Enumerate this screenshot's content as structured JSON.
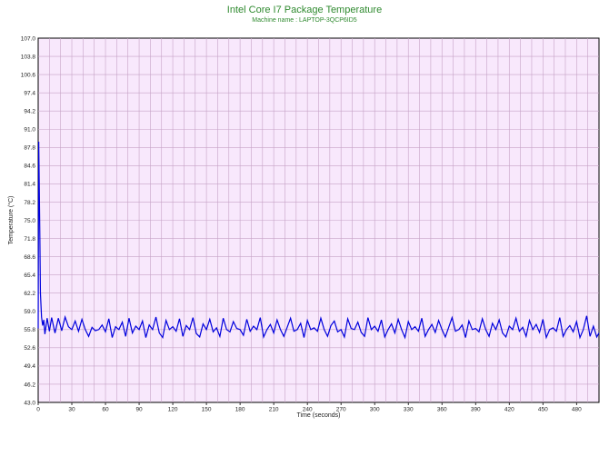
{
  "chart_data": {
    "type": "line",
    "title": "Intel Core I7 Package Temperature",
    "subtitle": "Machine name : LAPTOP-3QCP6ID5",
    "xlabel": "Time (seconds)",
    "ylabel": "Temperature (°C)",
    "xlim": [
      0,
      500
    ],
    "ylim": [
      43.0,
      107.0
    ],
    "x_ticks": [
      "0",
      "30",
      "60",
      "90",
      "120",
      "150",
      "180",
      "210",
      "240",
      "270",
      "300",
      "330",
      "360",
      "390",
      "420",
      "450",
      "480"
    ],
    "y_ticks": [
      "107.0",
      "103.8",
      "100.6",
      "97.4",
      "94.2",
      "91.0",
      "87.8",
      "84.6",
      "81.4",
      "78.2",
      "75.0",
      "71.8",
      "68.6",
      "65.4",
      "62.2",
      "59.0",
      "55.8",
      "52.6",
      "49.4",
      "46.2",
      "43.0"
    ],
    "grid": true,
    "colors": {
      "background": "#f8e8fc",
      "grid": "#c6a2c6",
      "line": "#0000dd",
      "title": "#2f8a2f"
    },
    "series": [
      {
        "x": [
          0,
          0.5,
          1,
          1.5,
          2,
          3,
          4,
          5,
          6,
          8,
          10,
          12,
          15,
          18,
          21,
          24,
          27,
          30,
          33,
          36,
          39,
          42,
          45,
          48,
          51,
          54,
          57,
          60,
          63,
          66,
          69,
          72,
          75,
          78,
          81,
          84,
          87,
          90,
          93,
          96,
          99,
          102,
          105,
          108,
          111,
          114,
          117,
          120,
          123,
          126,
          129,
          132,
          135,
          138,
          141,
          144,
          147,
          150,
          153,
          156,
          159,
          162,
          165,
          168,
          171,
          174,
          177,
          180,
          183,
          186,
          189,
          192,
          195,
          198,
          201,
          204,
          207,
          210,
          213,
          216,
          219,
          222,
          225,
          228,
          231,
          234,
          237,
          240,
          243,
          246,
          249,
          252,
          255,
          258,
          261,
          264,
          267,
          270,
          273,
          276,
          279,
          282,
          285,
          288,
          291,
          294,
          297,
          300,
          303,
          306,
          309,
          312,
          315,
          318,
          321,
          324,
          327,
          330,
          333,
          336,
          339,
          342,
          345,
          348,
          351,
          354,
          357,
          360,
          363,
          366,
          369,
          372,
          375,
          378,
          381,
          384,
          387,
          390,
          393,
          396,
          399,
          402,
          405,
          408,
          411,
          414,
          417,
          420,
          423,
          426,
          429,
          432,
          435,
          438,
          441,
          444,
          447,
          450,
          453,
          456,
          459,
          462,
          465,
          468,
          471,
          474,
          477,
          480,
          483,
          486,
          489,
          492,
          495,
          498,
          500
        ],
        "y": [
          56.0,
          88.8,
          80.5,
          72.0,
          62.2,
          58.0,
          56.5,
          57.5,
          55.0,
          57.8,
          55.5,
          57.9,
          55.2,
          57.8,
          55.6,
          58.0,
          56.3,
          55.8,
          57.3,
          55.5,
          57.6,
          55.8,
          54.6,
          56.2,
          55.6,
          55.8,
          56.6,
          55.4,
          57.7,
          54.4,
          56.3,
          55.8,
          57.1,
          54.6,
          57.8,
          55.2,
          56.4,
          55.8,
          57.3,
          54.4,
          56.6,
          55.8,
          58.0,
          55.2,
          54.4,
          57.4,
          55.8,
          56.3,
          55.5,
          57.7,
          54.6,
          56.5,
          55.8,
          57.9,
          55.1,
          54.5,
          56.8,
          55.8,
          57.6,
          55.4,
          56.1,
          54.6,
          57.8,
          55.8,
          55.4,
          57.2,
          56.0,
          55.8,
          54.8,
          57.6,
          55.5,
          56.4,
          55.8,
          57.9,
          54.5,
          55.8,
          56.7,
          55.2,
          57.5,
          55.8,
          54.6,
          56.2,
          57.8,
          55.5,
          55.8,
          56.9,
          54.4,
          57.4,
          55.8,
          56.1,
          55.5,
          57.8,
          55.8,
          54.6,
          56.5,
          57.3,
          55.4,
          55.8,
          54.5,
          57.7,
          56.0,
          55.8,
          57.1,
          55.3,
          54.6,
          57.9,
          55.8,
          56.4,
          55.5,
          57.5,
          54.5,
          55.8,
          56.8,
          55.2,
          57.6,
          55.8,
          54.4,
          57.2,
          55.8,
          56.3,
          55.5,
          57.8,
          54.6,
          55.8,
          56.7,
          55.3,
          57.4,
          55.8,
          54.5,
          56.2,
          57.9,
          55.5,
          55.8,
          56.6,
          54.4,
          57.3,
          55.8,
          56.0,
          55.4,
          57.7,
          55.8,
          54.6,
          56.9,
          55.8,
          57.5,
          55.2,
          54.5,
          56.4,
          55.8,
          57.8,
          55.5,
          56.2,
          54.6,
          57.4,
          55.8,
          56.7,
          55.3,
          57.6,
          54.4,
          55.8,
          56.1,
          55.5,
          57.9,
          54.6,
          55.8,
          56.5,
          55.4,
          57.2,
          54.4,
          55.8,
          58.2,
          54.6,
          56.4,
          54.5,
          55.2
        ]
      }
    ]
  }
}
